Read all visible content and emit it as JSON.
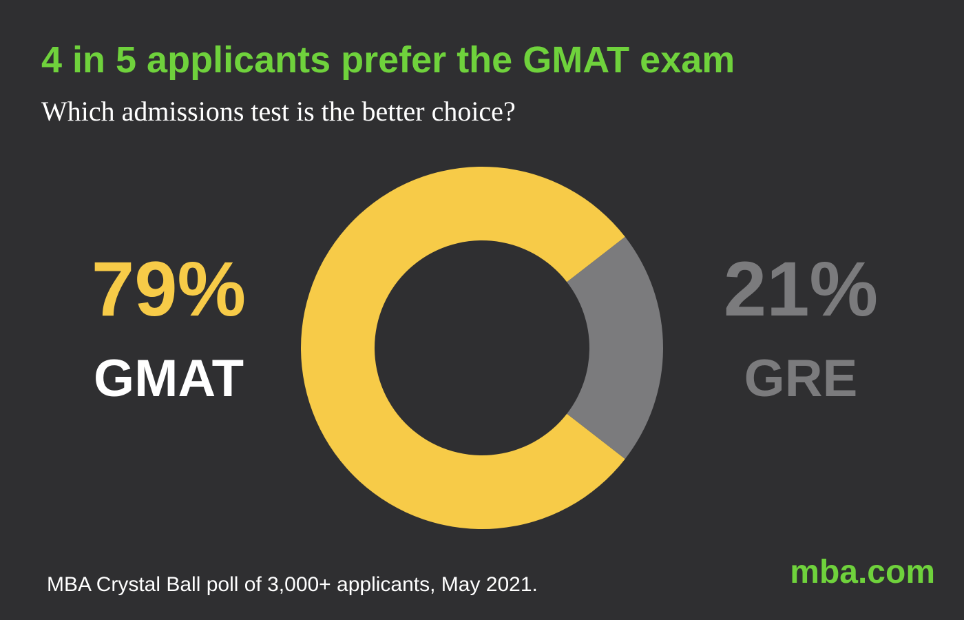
{
  "chart_data": {
    "type": "donut",
    "title": "4 in 5 applicants prefer the GMAT exam",
    "subtitle": "Which admissions test is the better choice?",
    "categories": [
      "GMAT",
      "GRE"
    ],
    "values": [
      79,
      21
    ],
    "value_labels": [
      "79%",
      "21%"
    ],
    "colors": [
      "#f7cb48",
      "#7b7b7d"
    ],
    "source": "MBA Crystal Ball poll of 3,000+ applicants, May 2021.",
    "brand": "mba.com"
  }
}
